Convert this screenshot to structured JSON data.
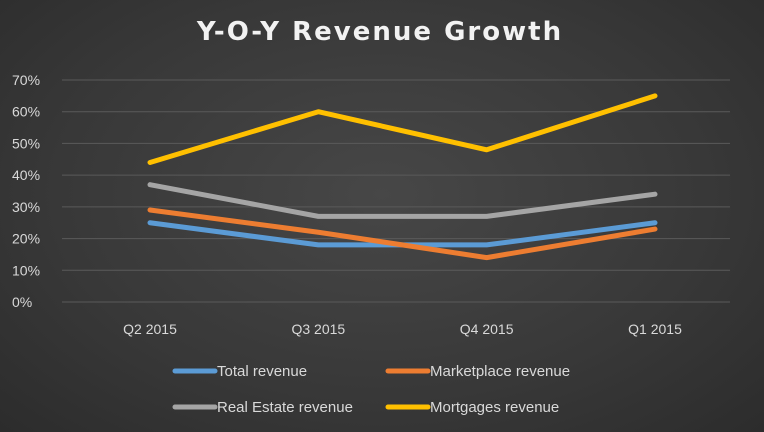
{
  "chart_data": {
    "type": "line",
    "title": "Y-O-Y Revenue Growth",
    "xlabel": "",
    "ylabel": "",
    "categories": [
      "Q2 2015",
      "Q3 2015",
      "Q4 2015",
      "Q1 2015"
    ],
    "y_ticks": [
      "0%",
      "10%",
      "20%",
      "30%",
      "40%",
      "50%",
      "60%",
      "70%"
    ],
    "ylim": [
      0,
      70
    ],
    "grid": true,
    "legend_position": "bottom",
    "series": [
      {
        "name": "Total revenue",
        "color": "#5b9bd5",
        "values": [
          25,
          18,
          18,
          25
        ]
      },
      {
        "name": "Marketplace revenue",
        "color": "#ed7d31",
        "values": [
          29,
          22,
          14,
          23
        ]
      },
      {
        "name": "Real Estate revenue",
        "color": "#a5a5a5",
        "values": [
          37,
          27,
          27,
          34
        ]
      },
      {
        "name": "Mortgages revenue",
        "color": "#ffc000",
        "values": [
          44,
          60,
          48,
          65
        ]
      }
    ]
  }
}
